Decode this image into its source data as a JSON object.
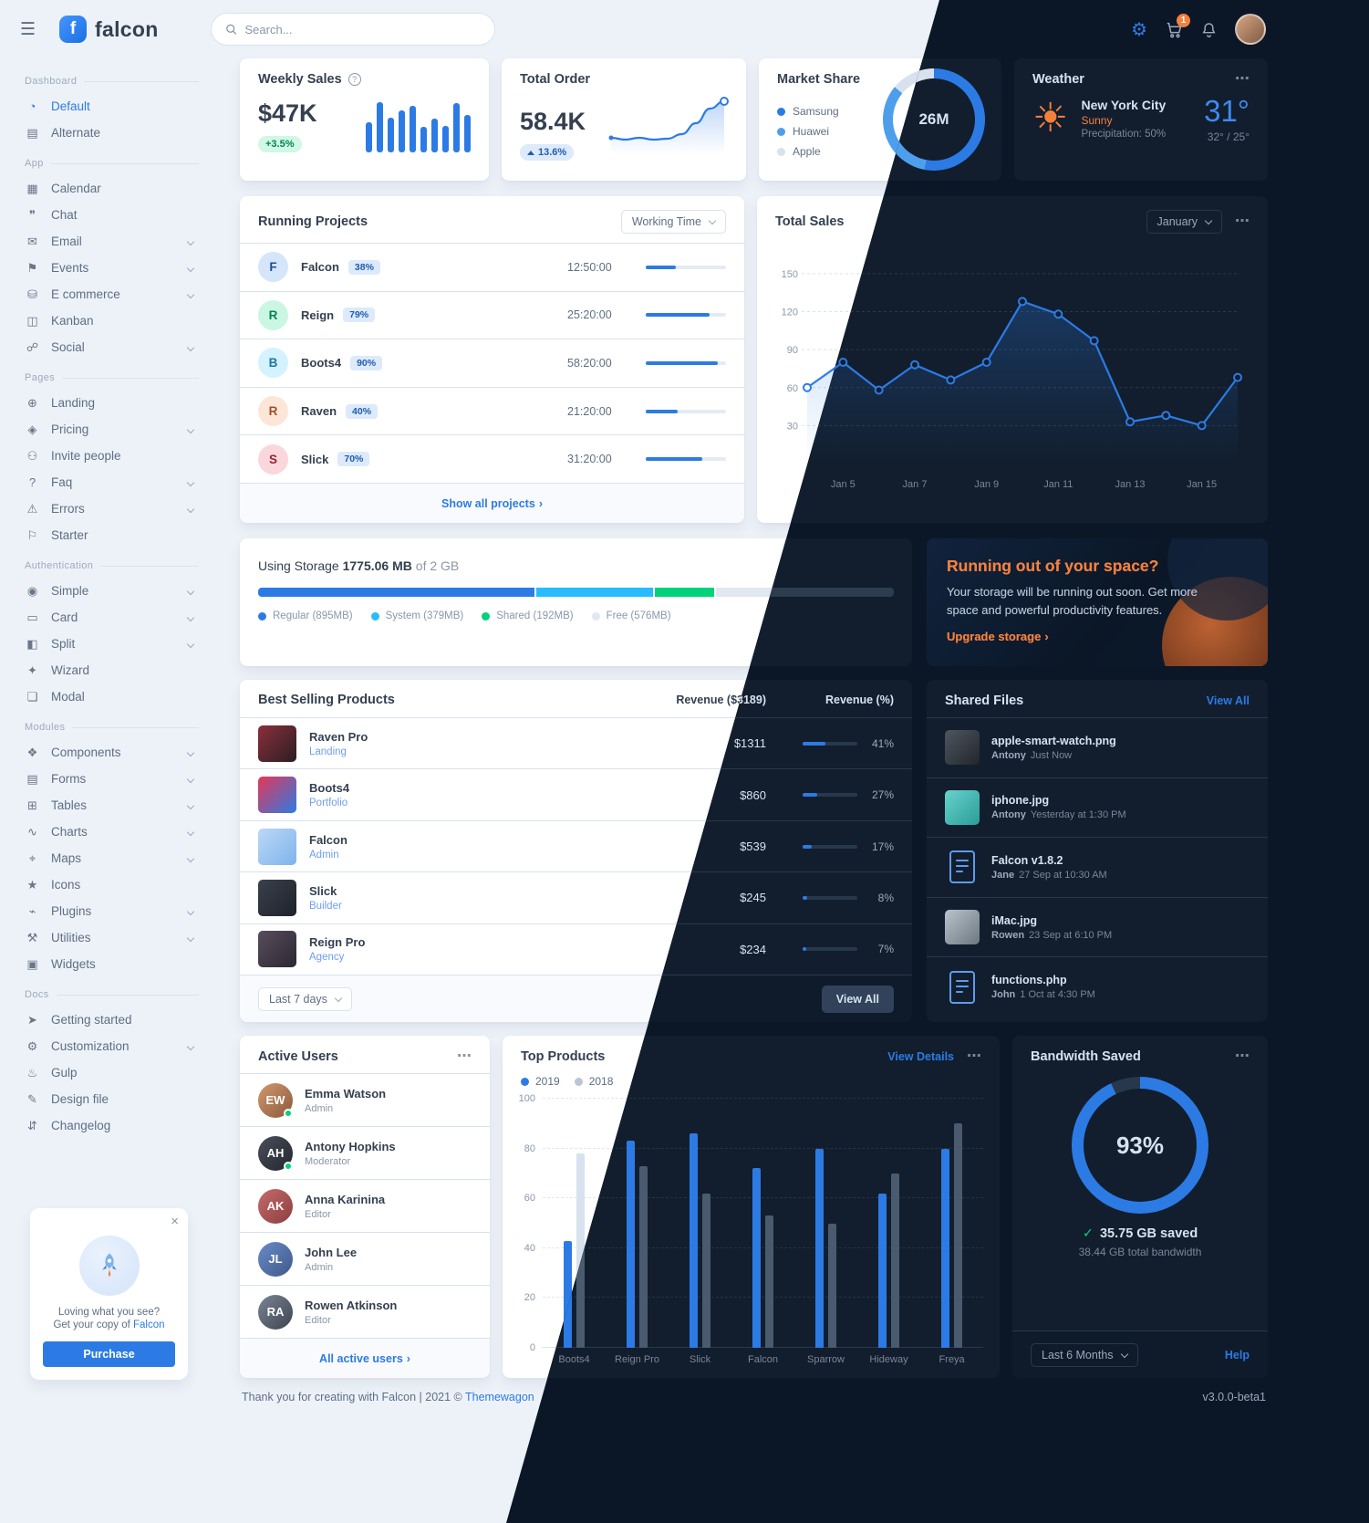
{
  "icons": {
    "menu": "☰",
    "gear": "⚙",
    "sun": "☀",
    "ellipsis": "⋯",
    "close": "×",
    "info": "?",
    "check": "✓",
    "logo_letter": "f"
  },
  "topbar": {
    "brand": "falcon",
    "search_placeholder": "Search...",
    "cart_badge": "1"
  },
  "sidebar": {
    "sections": [
      {
        "label": "Dashboard",
        "items": [
          {
            "label": "Default",
            "icon": "pie-chart",
            "active": true
          },
          {
            "label": "Alternate",
            "icon": "bar-chart"
          }
        ]
      },
      {
        "label": "App",
        "items": [
          {
            "label": "Calendar",
            "icon": "calendar"
          },
          {
            "label": "Chat",
            "icon": "chat"
          },
          {
            "label": "Email",
            "icon": "envelope",
            "caret": true
          },
          {
            "label": "Events",
            "icon": "calendar-day",
            "caret": true
          },
          {
            "label": "E commerce",
            "icon": "shopping-cart",
            "caret": true
          },
          {
            "label": "Kanban",
            "icon": "kanban"
          },
          {
            "label": "Social",
            "icon": "share",
            "caret": true
          }
        ]
      },
      {
        "label": "Pages",
        "items": [
          {
            "label": "Landing",
            "icon": "globe"
          },
          {
            "label": "Pricing",
            "icon": "tags",
            "caret": true
          },
          {
            "label": "Invite people",
            "icon": "user-plus"
          },
          {
            "label": "Faq",
            "icon": "question-circle",
            "caret": true
          },
          {
            "label": "Errors",
            "icon": "warning",
            "caret": true
          },
          {
            "label": "Starter",
            "icon": "flag"
          }
        ]
      },
      {
        "label": "Authentication",
        "items": [
          {
            "label": "Simple",
            "icon": "lock",
            "caret": true
          },
          {
            "label": "Card",
            "icon": "credit-card",
            "caret": true
          },
          {
            "label": "Split",
            "icon": "columns",
            "caret": true
          },
          {
            "label": "Wizard",
            "icon": "magic"
          },
          {
            "label": "Modal",
            "icon": "window"
          }
        ]
      },
      {
        "label": "Modules",
        "items": [
          {
            "label": "Components",
            "icon": "puzzle",
            "caret": true
          },
          {
            "label": "Forms",
            "icon": "file-alt",
            "caret": true
          },
          {
            "label": "Tables",
            "icon": "table",
            "caret": true
          },
          {
            "label": "Charts",
            "icon": "chart-line",
            "caret": true
          },
          {
            "label": "Maps",
            "icon": "map",
            "caret": true
          },
          {
            "label": "Icons",
            "icon": "star"
          },
          {
            "label": "Plugins",
            "icon": "plug",
            "caret": true
          },
          {
            "label": "Utilities",
            "icon": "tools",
            "caret": true
          },
          {
            "label": "Widgets",
            "icon": "th"
          }
        ]
      },
      {
        "label": "Docs",
        "items": [
          {
            "label": "Getting started",
            "icon": "rocket"
          },
          {
            "label": "Customization",
            "icon": "wrench",
            "caret": true
          },
          {
            "label": "Gulp",
            "icon": "glass"
          },
          {
            "label": "Design file",
            "icon": "palette"
          },
          {
            "label": "Changelog",
            "icon": "code-branch"
          }
        ]
      }
    ],
    "promo": {
      "line1": "Loving what you see?",
      "line2_prefix": "Get your copy of ",
      "line2_link": "Falcon",
      "button": "Purchase"
    }
  },
  "cards": {
    "weekly_sales": {
      "title": "Weekly Sales",
      "value": "$47K",
      "badge": "+3.5%",
      "bars": [
        52,
        86,
        60,
        72,
        80,
        44,
        58,
        46,
        84,
        64
      ]
    },
    "total_order": {
      "title": "Total Order",
      "value": "58.4K",
      "badge": "13.6%",
      "line": [
        14,
        12,
        14,
        12,
        13,
        18,
        30,
        46,
        54
      ]
    },
    "market_share": {
      "title": "Market Share",
      "center": "26M",
      "slices": [
        {
          "label": "Samsung",
          "value": 53,
          "color": "#2c7be5"
        },
        {
          "label": "Huawei",
          "value": 33,
          "color": "#4d9fec"
        },
        {
          "label": "Apple",
          "value": 14,
          "color": "#d8e2ef"
        }
      ]
    },
    "weather": {
      "title": "Weather",
      "city": "New York City",
      "condition": "Sunny",
      "precipitation": "Precipitation: 50%",
      "temp": "31°",
      "range": "32° / 25°"
    },
    "running_projects": {
      "title": "Running Projects",
      "filter": "Working Time",
      "footer": "Show all projects",
      "rows": [
        {
          "initial": "F",
          "name": "Falcon",
          "percent": 38,
          "time": "12:50:00",
          "bg": "#d5e5fa",
          "fg": "#1c4f93"
        },
        {
          "initial": "R",
          "name": "Reign",
          "percent": 79,
          "time": "25:20:00",
          "bg": "#ccf6e4",
          "fg": "#00864e"
        },
        {
          "initial": "B",
          "name": "Boots4",
          "percent": 90,
          "time": "58:20:00",
          "bg": "#d4f2ff",
          "fg": "#1978a2"
        },
        {
          "initial": "R",
          "name": "Raven",
          "percent": 40,
          "time": "21:20:00",
          "bg": "#fde6d8",
          "fg": "#9d5228"
        },
        {
          "initial": "S",
          "name": "Slick",
          "percent": 70,
          "time": "31:20:00",
          "bg": "#fad7dd",
          "fg": "#932338"
        }
      ]
    },
    "total_sales": {
      "title": "Total Sales",
      "month": "January",
      "y_max": 160,
      "y_ticks": [
        150,
        120,
        90,
        60,
        30
      ],
      "x_ticks": [
        "Jan 5",
        "Jan 7",
        "Jan 9",
        "Jan 11",
        "Jan 13",
        "Jan 15"
      ],
      "values": [
        60,
        80,
        58,
        78,
        66,
        80,
        128,
        118,
        97,
        33,
        38,
        30,
        68
      ]
    },
    "storage": {
      "label": "Using Storage",
      "used": "1775.06 MB",
      "of_total": "of 2 GB",
      "total_mb": 2042,
      "segments": [
        {
          "label": "Regular (895MB)",
          "mb": 895,
          "color": "#2c7be5"
        },
        {
          "label": "System (379MB)",
          "mb": 379,
          "color": "#27bcfd"
        },
        {
          "label": "Shared (192MB)",
          "mb": 192,
          "color": "#00d27a"
        },
        {
          "label": "Free (576MB)",
          "mb": 576,
          "color": "#e1e8f2"
        }
      ]
    },
    "space": {
      "title": "Running out of your space?",
      "body": "Your storage will be running out soon. Get more space and powerful productivity features.",
      "link": "Upgrade storage"
    },
    "best_selling": {
      "title": "Best Selling Products",
      "revenue_header": "Revenue ($3189)",
      "percent_header": "Revenue (%)",
      "filter": "Last 7 days",
      "view_all": "View All",
      "rows": [
        {
          "name": "Raven Pro",
          "category": "Landing",
          "revenue": "$1311",
          "percent": 41,
          "thumb": [
            "#8a2f3c",
            "#2b1e22"
          ]
        },
        {
          "name": "Boots4",
          "category": "Portfolio",
          "revenue": "$860",
          "percent": 27,
          "thumb": [
            "#e63757",
            "#2c7be5"
          ]
        },
        {
          "name": "Falcon",
          "category": "Admin",
          "revenue": "$539",
          "percent": 17,
          "thumb": [
            "#bcd8f5",
            "#7fb3ec"
          ]
        },
        {
          "name": "Slick",
          "category": "Builder",
          "revenue": "$245",
          "percent": 8,
          "thumb": [
            "#3a404d",
            "#1e222a"
          ]
        },
        {
          "name": "Reign Pro",
          "category": "Agency",
          "revenue": "$234",
          "percent": 7,
          "thumb": [
            "#584d5e",
            "#2c2731"
          ]
        }
      ]
    },
    "shared_files": {
      "title": "Shared Files",
      "view_all": "View All",
      "files": [
        {
          "name": "apple-smart-watch.png",
          "author": "Antony",
          "time": "Just Now",
          "kind": "image",
          "thumb": [
            "#4d5660",
            "#23262b"
          ]
        },
        {
          "name": "iphone.jpg",
          "author": "Antony",
          "time": "Yesterday at 1:30 PM",
          "kind": "image",
          "thumb": [
            "#69d2cd",
            "#2a9d97"
          ]
        },
        {
          "name": "Falcon v1.8.2",
          "author": "Jane",
          "time": "27 Sep at 10:30 AM",
          "kind": "doc"
        },
        {
          "name": "iMac.jpg",
          "author": "Rowen",
          "time": "23 Sep at 6:10 PM",
          "kind": "image",
          "thumb": [
            "#b9c3cc",
            "#6d7780"
          ]
        },
        {
          "name": "functions.php",
          "author": "John",
          "time": "1 Oct at 4:30 PM",
          "kind": "doc"
        }
      ]
    },
    "active_users": {
      "title": "Active Users",
      "footer": "All active users",
      "users": [
        {
          "name": "Emma Watson",
          "role": "Admin",
          "initials": "EW",
          "colors": [
            "#d2986f",
            "#8a5a3b"
          ],
          "online": true
        },
        {
          "name": "Antony Hopkins",
          "role": "Moderator",
          "initials": "AH",
          "colors": [
            "#4a4f5a",
            "#23262e"
          ],
          "online": true
        },
        {
          "name": "Anna Karinina",
          "role": "Editor",
          "initials": "AK",
          "colors": [
            "#c76a6a",
            "#8a3f3f"
          ],
          "online": false
        },
        {
          "name": "John Lee",
          "role": "Admin",
          "initials": "JL",
          "colors": [
            "#6a8ac7",
            "#3f5a8a"
          ],
          "online": false
        },
        {
          "name": "Rowen Atkinson",
          "role": "Editor",
          "initials": "RA",
          "colors": [
            "#7b8494",
            "#3e4450"
          ],
          "online": false
        }
      ]
    },
    "top_products": {
      "title": "Top Products",
      "view_details": "View Details",
      "legend": [
        {
          "label": "2019",
          "color": "#2c7be5"
        },
        {
          "label": "2018",
          "color": "#b9c6d4"
        }
      ],
      "categories": [
        "Boots4",
        "Reign Pro",
        "Slick",
        "Falcon",
        "Sparrow",
        "Hideway",
        "Freya"
      ],
      "series": [
        {
          "name": "2019",
          "values": [
            43,
            83,
            86,
            72,
            80,
            62,
            80
          ]
        },
        {
          "name": "2018",
          "values": [
            78,
            73,
            62,
            53,
            50,
            70,
            90
          ]
        }
      ],
      "y_ticks": [
        0,
        20,
        40,
        60,
        80,
        100
      ]
    },
    "bandwidth": {
      "title": "Bandwidth Saved",
      "percent": 93,
      "percent_label": "93%",
      "saved": "35.75 GB saved",
      "total": "38.44 GB total bandwidth",
      "filter": "Last 6 Months",
      "help": "Help"
    }
  },
  "footer": {
    "text": "Thank you for creating with Falcon | 2021 © ",
    "brand": "Themewagon",
    "version": "v3.0.0-beta1"
  }
}
